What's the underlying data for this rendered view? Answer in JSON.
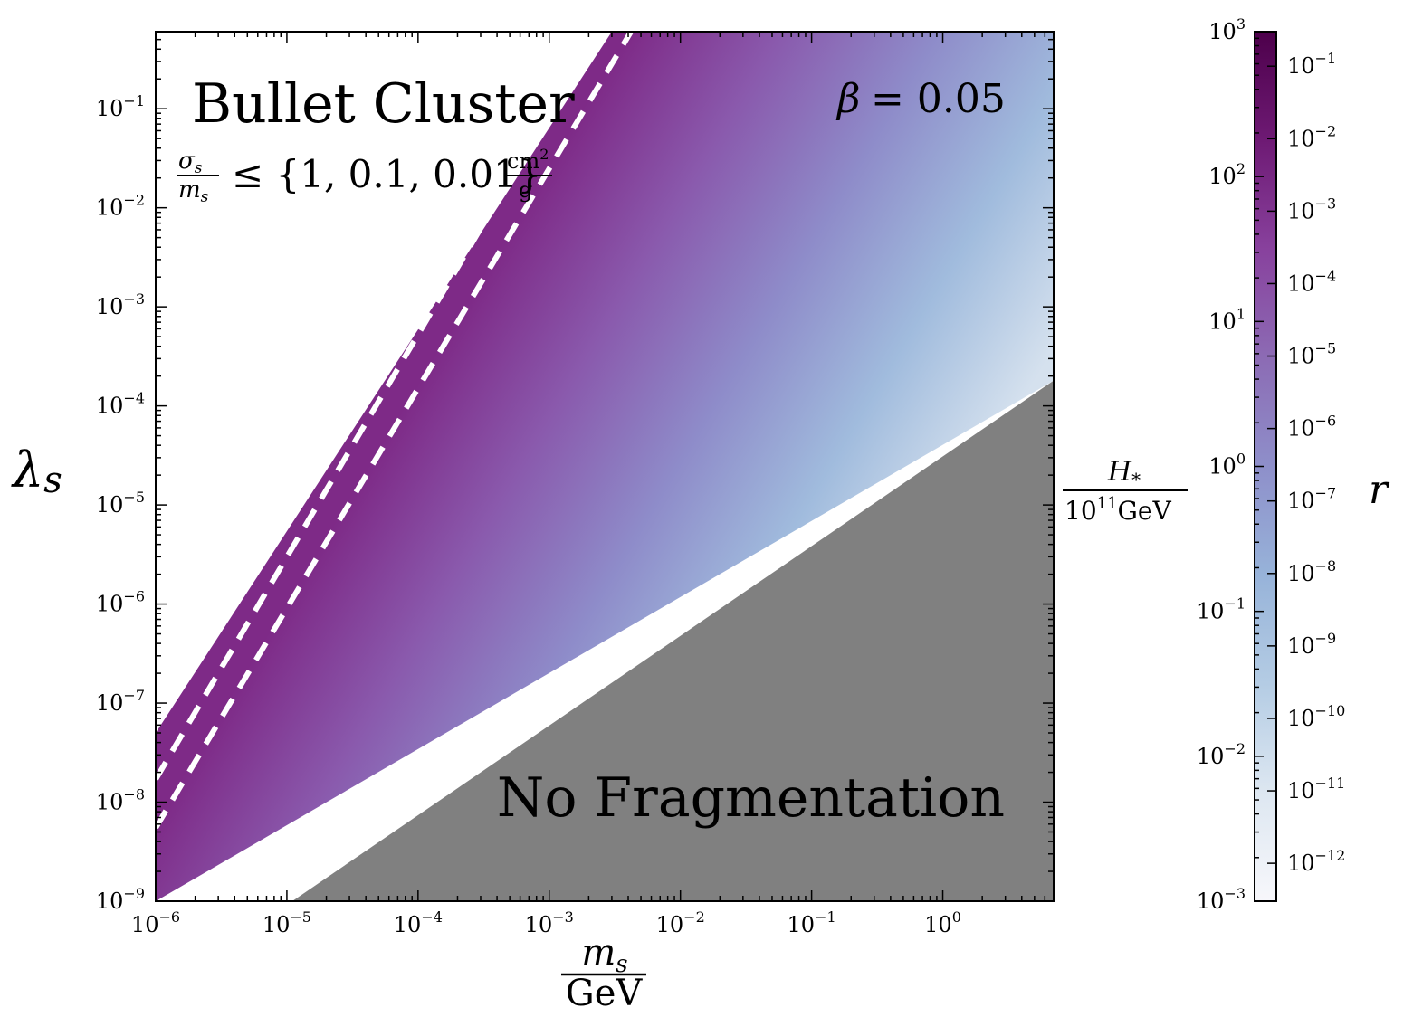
{
  "chart_data": {
    "type": "heatmap",
    "title": "",
    "x_axis": {
      "label_num": "m",
      "label_num_sub": "s",
      "label_den": "GeV",
      "scale": "log",
      "range": [
        1e-06,
        7
      ],
      "ticks": [
        {
          "value": 1e-06,
          "base": "10",
          "exp": "−6"
        },
        {
          "value": 1e-05,
          "base": "10",
          "exp": "−5"
        },
        {
          "value": 0.0001,
          "base": "10",
          "exp": "−4"
        },
        {
          "value": 0.001,
          "base": "10",
          "exp": "−3"
        },
        {
          "value": 0.01,
          "base": "10",
          "exp": "−2"
        },
        {
          "value": 0.1,
          "base": "10",
          "exp": "−1"
        },
        {
          "value": 1,
          "base": "10",
          "exp": "0"
        }
      ]
    },
    "y_axis": {
      "label": "λ",
      "label_sub": "s",
      "scale": "log",
      "range": [
        1e-09,
        0.6
      ],
      "ticks": [
        {
          "value": 1e-09,
          "base": "10",
          "exp": "−9"
        },
        {
          "value": 1e-08,
          "base": "10",
          "exp": "−8"
        },
        {
          "value": 1e-07,
          "base": "10",
          "exp": "−7"
        },
        {
          "value": 1e-06,
          "base": "10",
          "exp": "−6"
        },
        {
          "value": 1e-05,
          "base": "10",
          "exp": "−5"
        },
        {
          "value": 0.0001,
          "base": "10",
          "exp": "−4"
        },
        {
          "value": 0.001,
          "base": "10",
          "exp": "−3"
        },
        {
          "value": 0.01,
          "base": "10",
          "exp": "−2"
        },
        {
          "value": 0.1,
          "base": "10",
          "exp": "−1"
        }
      ]
    },
    "allowed_band": {
      "upper_edge": [
        [
          1e-06,
          5e-08
        ],
        [
          0.003,
          0.6
        ]
      ],
      "lower_edge": [
        [
          1e-06,
          1e-09
        ],
        [
          7,
          0.00018
        ]
      ],
      "color_gradient": [
        "#7e2a87",
        "#8a5aad",
        "#8e8bc9",
        "#a0bbdd",
        "#d5e1ee"
      ]
    },
    "no_fragmentation_region": {
      "label": "No Fragmentation",
      "color": "#808080",
      "boundary": [
        [
          1.1e-05,
          1e-09
        ],
        [
          7,
          0.00018
        ]
      ]
    },
    "dashed_lines": [
      {
        "points": [
          [
            1e-06,
            1.7e-08
          ],
          [
            0.0023,
            0.6
          ]
        ],
        "color": "#ffffff"
      },
      {
        "points": [
          [
            1e-06,
            5.5e-09
          ],
          [
            0.0042,
            0.6
          ]
        ],
        "color": "#ffffff"
      }
    ],
    "annotations": {
      "bullet_cluster": "Bullet Cluster",
      "cross_section_sigma": "σ",
      "cross_section_sigma_sub": "s",
      "cross_section_m": "m",
      "cross_section_m_sub": "s",
      "cross_section_leq": "≤ {1, 0.1, 0.01}",
      "cross_section_unit_num": "cm",
      "cross_section_unit_num_exp": "2",
      "cross_section_unit_den": "g",
      "beta_symbol": "β",
      "beta_value": "= 0.05"
    },
    "colorbar": {
      "label": "r",
      "left_axis": {
        "label_num": "H",
        "label_num_sub": "*",
        "label_den_base": "10",
        "label_den_exp": "11",
        "label_den_unit": "GeV",
        "scale": "log",
        "range": [
          0.001,
          1000
        ],
        "ticks": [
          {
            "value": 0.001,
            "base": "10",
            "exp": "−3"
          },
          {
            "value": 0.01,
            "base": "10",
            "exp": "−2"
          },
          {
            "value": 0.1,
            "base": "10",
            "exp": "−1"
          },
          {
            "value": 1,
            "base": "10",
            "exp": "0"
          },
          {
            "value": 10,
            "base": "10",
            "exp": "1"
          },
          {
            "value": 100,
            "base": "10",
            "exp": "2"
          },
          {
            "value": 1000,
            "base": "10",
            "exp": "3"
          }
        ]
      },
      "right_axis": {
        "scale": "log",
        "range": [
          3e-13,
          0.3
        ],
        "ticks": [
          {
            "value": 1e-12,
            "base": "10",
            "exp": "−12"
          },
          {
            "value": 1e-11,
            "base": "10",
            "exp": "−11"
          },
          {
            "value": 1e-10,
            "base": "10",
            "exp": "−10"
          },
          {
            "value": 1e-09,
            "base": "10",
            "exp": "−9"
          },
          {
            "value": 1e-08,
            "base": "10",
            "exp": "−8"
          },
          {
            "value": 1e-07,
            "base": "10",
            "exp": "−7"
          },
          {
            "value": 1e-06,
            "base": "10",
            "exp": "−6"
          },
          {
            "value": 1e-05,
            "base": "10",
            "exp": "−5"
          },
          {
            "value": 0.0001,
            "base": "10",
            "exp": "−4"
          },
          {
            "value": 0.001,
            "base": "10",
            "exp": "−3"
          },
          {
            "value": 0.01,
            "base": "10",
            "exp": "−2"
          },
          {
            "value": 0.1,
            "base": "10",
            "exp": "−1"
          }
        ]
      },
      "gradient": [
        "#f7f7fb",
        "#dde7f1",
        "#b4cce4",
        "#97b3d9",
        "#8e8fca",
        "#8c6bb4",
        "#88419d",
        "#6e1a74",
        "#4d004b"
      ]
    }
  }
}
